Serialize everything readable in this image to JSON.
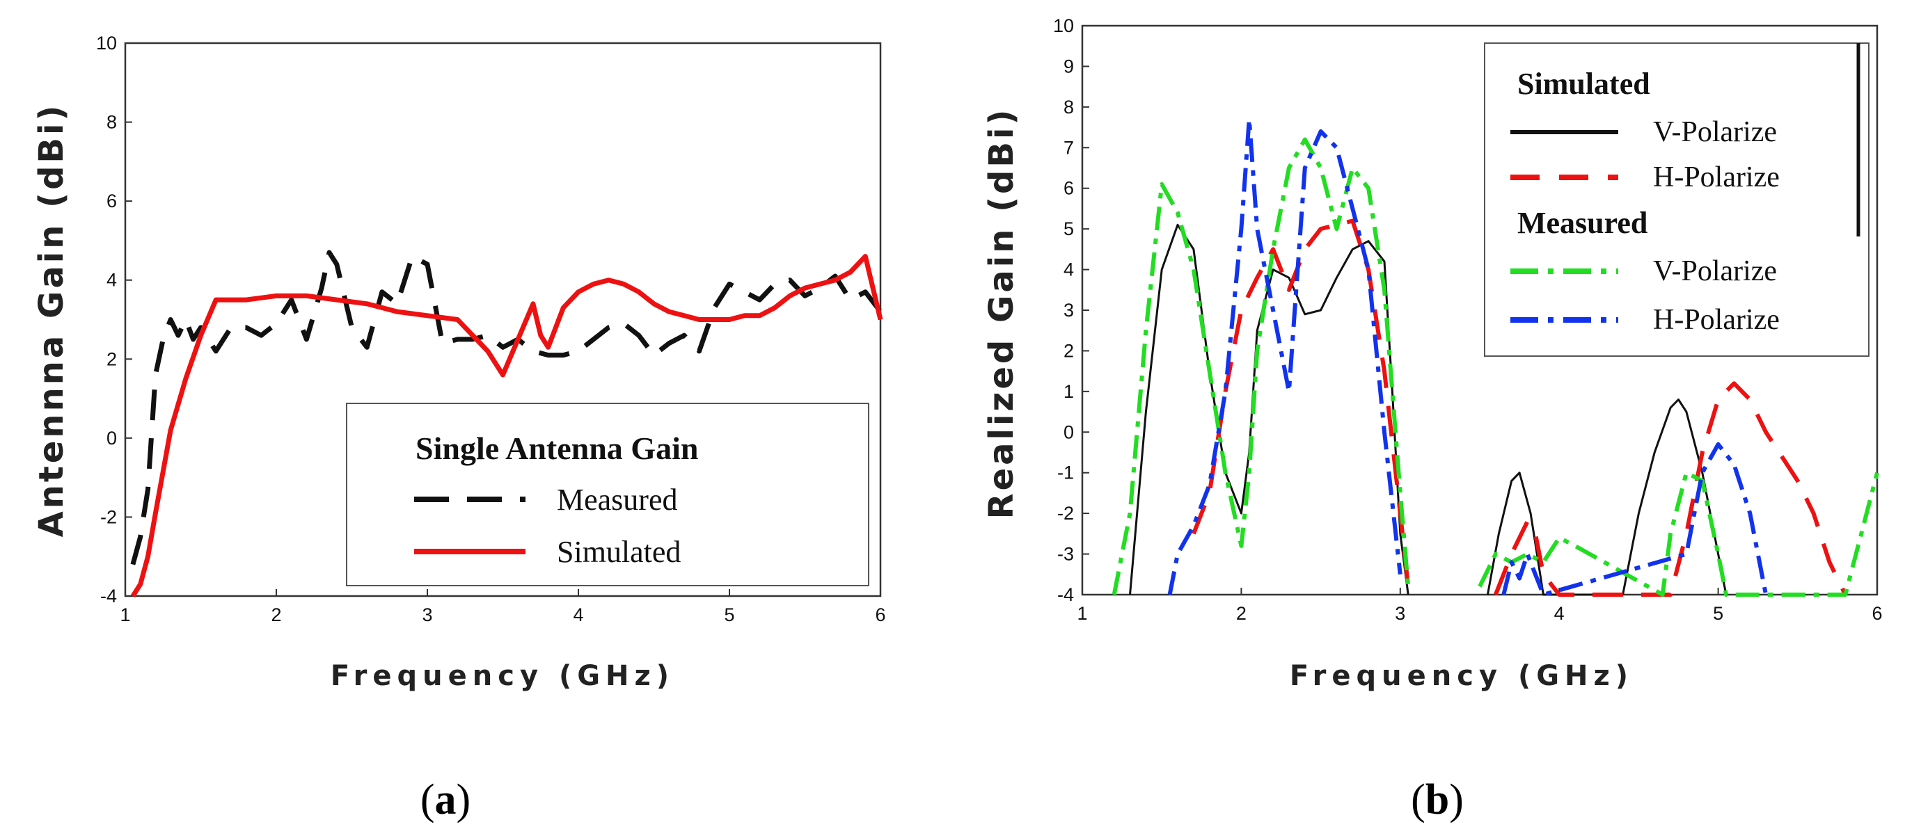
{
  "chart_data": [
    {
      "type": "line",
      "panel_label": "a",
      "title": "",
      "xlabel": "Frequency (GHz)",
      "ylabel": "Antennna Gain (dBi)",
      "xlim": [
        1,
        6
      ],
      "ylim": [
        -4,
        10
      ],
      "xticks": [
        1,
        2,
        3,
        4,
        5,
        6
      ],
      "yticks": [
        -4,
        -2,
        0,
        2,
        4,
        6,
        8,
        10
      ],
      "grid": false,
      "legend": {
        "title": "Single Antenna Gain",
        "position": "bottom-right",
        "entries": [
          "Measured",
          "Simulated"
        ]
      },
      "series": [
        {
          "name": "Measured",
          "color": "#111111",
          "dash": "dashed",
          "x": [
            1.05,
            1.1,
            1.15,
            1.2,
            1.25,
            1.3,
            1.35,
            1.4,
            1.45,
            1.5,
            1.6,
            1.7,
            1.8,
            1.9,
            2.0,
            2.1,
            2.2,
            2.3,
            2.35,
            2.4,
            2.5,
            2.6,
            2.7,
            2.8,
            2.9,
            3.0,
            3.1,
            3.2,
            3.3,
            3.4,
            3.5,
            3.6,
            3.7,
            3.8,
            3.9,
            4.0,
            4.1,
            4.2,
            4.3,
            4.4,
            4.5,
            4.6,
            4.7,
            4.8,
            4.9,
            5.0,
            5.1,
            5.2,
            5.3,
            5.4,
            5.5,
            5.6,
            5.7,
            5.8,
            5.9,
            6.0
          ],
          "y": [
            -3.2,
            -2.5,
            -1.3,
            1.6,
            2.5,
            3.0,
            2.6,
            3.0,
            2.5,
            2.8,
            2.2,
            2.8,
            2.8,
            2.6,
            2.9,
            3.5,
            2.5,
            3.8,
            4.7,
            4.4,
            2.8,
            2.3,
            3.7,
            3.4,
            4.6,
            4.4,
            2.4,
            2.5,
            2.5,
            2.6,
            2.3,
            2.5,
            2.2,
            2.1,
            2.1,
            2.2,
            2.5,
            2.8,
            2.9,
            2.6,
            2.1,
            2.4,
            2.6,
            2.2,
            3.3,
            3.9,
            3.7,
            3.5,
            3.9,
            4.0,
            3.6,
            3.8,
            4.1,
            3.5,
            3.7,
            3.2
          ]
        },
        {
          "name": "Simulated",
          "color": "#ee1111",
          "dash": "solid",
          "x": [
            1.05,
            1.1,
            1.15,
            1.2,
            1.3,
            1.4,
            1.5,
            1.6,
            1.7,
            1.8,
            2.0,
            2.2,
            2.4,
            2.6,
            2.8,
            3.0,
            3.2,
            3.3,
            3.4,
            3.5,
            3.6,
            3.7,
            3.75,
            3.8,
            3.9,
            4.0,
            4.1,
            4.2,
            4.3,
            4.4,
            4.5,
            4.6,
            4.7,
            4.8,
            4.9,
            5.0,
            5.1,
            5.2,
            5.3,
            5.4,
            5.5,
            5.6,
            5.7,
            5.8,
            5.9,
            6.0
          ],
          "y": [
            -4.0,
            -3.7,
            -3.0,
            -1.9,
            0.2,
            1.5,
            2.6,
            3.5,
            3.5,
            3.5,
            3.6,
            3.6,
            3.5,
            3.4,
            3.2,
            3.1,
            3.0,
            2.6,
            2.2,
            1.6,
            2.5,
            3.4,
            2.6,
            2.3,
            3.3,
            3.7,
            3.9,
            4.0,
            3.9,
            3.7,
            3.4,
            3.2,
            3.1,
            3.0,
            3.0,
            3.0,
            3.1,
            3.1,
            3.3,
            3.6,
            3.8,
            3.9,
            4.0,
            4.2,
            4.6,
            3.0
          ]
        }
      ]
    },
    {
      "type": "line",
      "panel_label": "b",
      "title": "",
      "xlabel": "Frequency (GHz)",
      "ylabel": "Realized Gain (dBi)",
      "xlim": [
        1,
        6
      ],
      "ylim": [
        -4,
        10
      ],
      "xticks": [
        1,
        2,
        3,
        4,
        5,
        6
      ],
      "yticks": [
        -4,
        -3,
        -2,
        -1,
        0,
        1,
        2,
        3,
        4,
        5,
        6,
        7,
        8,
        9,
        10
      ],
      "grid": false,
      "legend": {
        "position": "top-right",
        "groups": [
          {
            "title": "Simulated",
            "entries": [
              "V-Polarize",
              "H-Polarize"
            ]
          },
          {
            "title": "Measured",
            "entries": [
              "V-Polarize",
              "H-Polarize"
            ]
          }
        ]
      },
      "series": [
        {
          "name": "Simulated V-Polarize",
          "color": "#111111",
          "dash": "solid",
          "x": [
            1.3,
            1.4,
            1.5,
            1.6,
            1.7,
            1.8,
            1.9,
            2.0,
            2.05,
            2.1,
            2.2,
            2.3,
            2.4,
            2.5,
            2.6,
            2.7,
            2.8,
            2.9,
            2.95,
            3.0,
            3.05
          ],
          "y": [
            -4.0,
            0.5,
            4.0,
            5.1,
            4.5,
            1.5,
            -1.0,
            -2.0,
            -0.5,
            2.5,
            4.0,
            3.8,
            2.9,
            3.0,
            3.8,
            4.5,
            4.7,
            4.2,
            1.0,
            -2.5,
            -4.0
          ]
        },
        {
          "name": "Simulated V-Polarize 2",
          "color": "#111111",
          "dash": "solid",
          "x": [
            3.55,
            3.62,
            3.7,
            3.75,
            3.82,
            3.9,
            4.4,
            4.5,
            4.6,
            4.7,
            4.75,
            4.8,
            4.9,
            5.0,
            5.05
          ],
          "y": [
            -4.0,
            -2.5,
            -1.2,
            -1.0,
            -2.0,
            -4.0,
            -4.0,
            -2.0,
            -0.5,
            0.6,
            0.8,
            0.5,
            -1.0,
            -3.0,
            -4.0
          ]
        },
        {
          "name": "Simulated H-Polarize",
          "color": "#ee1111",
          "dash": "dashed",
          "x": [
            1.7,
            1.8,
            1.9,
            2.0,
            2.1,
            2.2,
            2.3,
            2.4,
            2.5,
            2.6,
            2.7,
            2.8,
            2.9,
            3.0,
            3.05
          ],
          "y": [
            -2.5,
            -1.5,
            1.0,
            3.0,
            3.8,
            4.5,
            3.5,
            4.5,
            5.0,
            5.1,
            5.2,
            4.0,
            1.5,
            -2.0,
            -3.8
          ]
        },
        {
          "name": "Simulated H-Polarize 2",
          "color": "#ee1111",
          "dash": "dashed",
          "x": [
            3.6,
            3.7,
            3.8,
            3.85,
            3.9,
            4.0,
            4.7,
            4.8,
            4.9,
            5.0,
            5.1,
            5.2,
            5.3,
            5.4,
            5.5,
            5.6,
            5.7,
            5.8
          ],
          "y": [
            -4.0,
            -3.0,
            -2.2,
            -2.5,
            -3.5,
            -4.0,
            -4.0,
            -2.5,
            -0.5,
            0.8,
            1.2,
            0.8,
            0.0,
            -0.6,
            -1.2,
            -2.0,
            -3.2,
            -4.0
          ]
        },
        {
          "name": "Measured V-Polarize",
          "color": "#22dd22",
          "dash": "dashdot",
          "x": [
            1.2,
            1.3,
            1.4,
            1.5,
            1.6,
            1.7,
            1.8,
            1.9,
            2.0,
            2.05,
            2.1,
            2.2,
            2.3,
            2.4,
            2.5,
            2.6,
            2.7,
            2.8,
            2.9,
            3.0,
            3.05
          ],
          "y": [
            -4.0,
            -2.0,
            2.5,
            6.1,
            5.4,
            4.0,
            1.5,
            -1.0,
            -2.8,
            -1.0,
            2.0,
            4.5,
            6.5,
            7.2,
            6.5,
            5.0,
            6.5,
            6.0,
            3.5,
            -1.5,
            -3.8
          ]
        },
        {
          "name": "Measured V-Polarize 2",
          "color": "#22dd22",
          "dash": "dashdot",
          "x": [
            3.5,
            3.6,
            3.7,
            3.8,
            3.9,
            4.0,
            4.1,
            4.65,
            4.7,
            4.8,
            4.9,
            5.0,
            5.05,
            5.8,
            5.9,
            6.0
          ],
          "y": [
            -3.8,
            -3.0,
            -3.2,
            -3.0,
            -3.2,
            -2.6,
            -2.8,
            -4.0,
            -2.5,
            -1.0,
            -1.2,
            -3.0,
            -4.0,
            -4.0,
            -2.5,
            -1.0
          ]
        },
        {
          "name": "Measured H-Polarize",
          "color": "#1133ee",
          "dash": "dashdot",
          "x": [
            1.55,
            1.6,
            1.7,
            1.8,
            1.9,
            2.0,
            2.05,
            2.1,
            2.2,
            2.3,
            2.4,
            2.5,
            2.6,
            2.7,
            2.8,
            2.9,
            3.0
          ],
          "y": [
            -4.0,
            -3.0,
            -2.3,
            -1.3,
            1.0,
            5.0,
            7.7,
            5.0,
            3.0,
            1.0,
            6.5,
            7.4,
            7.0,
            5.5,
            4.0,
            0.0,
            -3.5
          ]
        },
        {
          "name": "Measured H-Polarize 2",
          "color": "#1133ee",
          "dash": "dashdot",
          "x": [
            3.65,
            3.7,
            3.75,
            3.8,
            3.85,
            3.9,
            4.8,
            4.85,
            4.9,
            5.0,
            5.1,
            5.2,
            5.25,
            5.3
          ],
          "y": [
            -4.0,
            -3.2,
            -3.6,
            -3.0,
            -3.5,
            -4.0,
            -3.0,
            -2.0,
            -1.0,
            -0.3,
            -0.8,
            -2.0,
            -3.0,
            -4.0
          ]
        }
      ]
    }
  ],
  "panels": {
    "a": {
      "caption_open": "(",
      "caption_letter": "a",
      "caption_close": ")",
      "legend_title": "Single Antenna Gain",
      "legend_measured": "Measured",
      "legend_simulated": "Simulated"
    },
    "b": {
      "caption_open": "(",
      "caption_letter": "b",
      "caption_close": ")",
      "legend_simulated_title": "Simulated",
      "legend_measured_title": "Measured",
      "legend_sim_v": "V-Polarize",
      "legend_sim_h": "H-Polarize",
      "legend_meas_v": "V-Polarize",
      "legend_meas_h": "H-Polarize"
    }
  }
}
